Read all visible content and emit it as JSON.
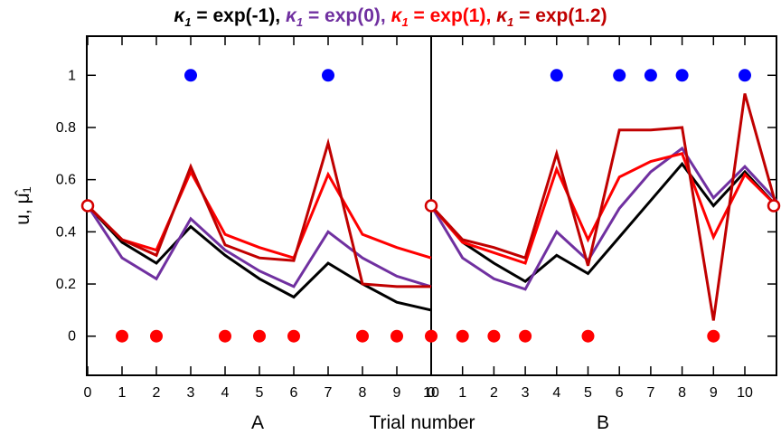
{
  "title_parts": [
    {
      "prefix": "",
      "sym": "κ",
      "sub": "1",
      "rest": " = exp(-1), ",
      "color": "#000000"
    },
    {
      "prefix": "",
      "sym": "κ",
      "sub": "1",
      "rest": " = exp(0), ",
      "color": "#7030a0"
    },
    {
      "prefix": "",
      "sym": "κ",
      "sub": "1",
      "rest": " = exp(1), ",
      "color": "#ff0000"
    },
    {
      "prefix": "",
      "sym": "κ",
      "sub": "1",
      "rest": " = exp(1.2)",
      "color": "#c00000"
    }
  ],
  "chart_data": {
    "type": "line",
    "ylabel": "u, μ̂₁",
    "xlabel": "Trial number",
    "ylim": [
      -0.15,
      1.15
    ],
    "yticks": [
      0,
      0.2,
      0.4,
      0.6,
      0.8,
      1
    ],
    "ytick_labels": [
      "0",
      "0.2",
      "0.4",
      "0.6",
      "0.8",
      "1"
    ],
    "panels": [
      {
        "label": "A",
        "xlim": [
          0,
          10
        ],
        "xticks": [
          0,
          1,
          2,
          3,
          4,
          5,
          6,
          7,
          8,
          9,
          10
        ],
        "xtick_labels": [
          "0",
          "1",
          "2",
          "3",
          "4",
          "5",
          "6",
          "7",
          "8",
          "9",
          "10"
        ],
        "inputs": {
          "x": [
            1,
            2,
            3,
            4,
            5,
            6,
            7,
            8,
            9,
            10
          ],
          "u": [
            0,
            0,
            1,
            0,
            0,
            0,
            1,
            0,
            0,
            0
          ]
        },
        "series": [
          {
            "name": "κ1 = exp(-1)",
            "color": "#000000",
            "x": [
              0,
              1,
              2,
              3,
              4,
              5,
              6,
              7,
              8,
              9,
              10
            ],
            "values": [
              0.5,
              0.36,
              0.28,
              0.42,
              0.31,
              0.22,
              0.15,
              0.28,
              0.2,
              0.13,
              0.1
            ]
          },
          {
            "name": "κ1 = exp(0)",
            "color": "#7030a0",
            "x": [
              0,
              1,
              2,
              3,
              4,
              5,
              6,
              7,
              8,
              9,
              10
            ],
            "values": [
              0.5,
              0.3,
              0.22,
              0.45,
              0.33,
              0.25,
              0.19,
              0.4,
              0.3,
              0.23,
              0.19
            ]
          },
          {
            "name": "κ1 = exp(1)",
            "color": "#ff0000",
            "x": [
              0,
              1,
              2,
              3,
              4,
              5,
              6,
              7,
              8,
              9,
              10
            ],
            "values": [
              0.5,
              0.37,
              0.33,
              0.63,
              0.39,
              0.34,
              0.3,
              0.62,
              0.39,
              0.34,
              0.3
            ]
          },
          {
            "name": "κ1 = exp(1.2)",
            "color": "#c00000",
            "x": [
              0,
              1,
              2,
              3,
              4,
              5,
              6,
              7,
              8,
              9,
              10
            ],
            "values": [
              0.5,
              0.37,
              0.31,
              0.65,
              0.35,
              0.3,
              0.29,
              0.74,
              0.2,
              0.19,
              0.19
            ]
          }
        ]
      },
      {
        "label": "B",
        "xlim": [
          0,
          11
        ],
        "xticks": [
          0,
          1,
          2,
          3,
          4,
          5,
          6,
          7,
          8,
          9,
          10
        ],
        "xtick_labels": [
          "0",
          "1",
          "2",
          "3",
          "4",
          "5",
          "6",
          "7",
          "8",
          "9",
          "10"
        ],
        "inputs": {
          "x": [
            1,
            2,
            3,
            4,
            5,
            6,
            7,
            8,
            9,
            10
          ],
          "u": [
            0,
            0,
            0,
            1,
            0,
            1,
            1,
            1,
            0,
            1
          ]
        },
        "series": [
          {
            "name": "κ1 = exp(-1)",
            "color": "#000000",
            "x": [
              0,
              1,
              2,
              3,
              4,
              5,
              6,
              7,
              8,
              9,
              10,
              11
            ],
            "values": [
              0.5,
              0.36,
              0.28,
              0.21,
              0.31,
              0.24,
              0.38,
              0.52,
              0.66,
              0.5,
              0.63,
              0.5
            ]
          },
          {
            "name": "κ1 = exp(0)",
            "color": "#7030a0",
            "x": [
              0,
              1,
              2,
              3,
              4,
              5,
              6,
              7,
              8,
              9,
              10,
              11
            ],
            "values": [
              0.5,
              0.3,
              0.22,
              0.18,
              0.4,
              0.29,
              0.49,
              0.63,
              0.72,
              0.53,
              0.65,
              0.52
            ]
          },
          {
            "name": "κ1 = exp(1)",
            "color": "#ff0000",
            "x": [
              0,
              1,
              2,
              3,
              4,
              5,
              6,
              7,
              8,
              9,
              10,
              11
            ],
            "values": [
              0.5,
              0.36,
              0.32,
              0.28,
              0.64,
              0.37,
              0.61,
              0.67,
              0.7,
              0.38,
              0.62,
              0.5
            ]
          },
          {
            "name": "κ1 = exp(1.2)",
            "color": "#c00000",
            "x": [
              0,
              1,
              2,
              3,
              4,
              5,
              6,
              7,
              8,
              9,
              10,
              11
            ],
            "values": [
              0.5,
              0.37,
              0.34,
              0.3,
              0.7,
              0.27,
              0.79,
              0.79,
              0.8,
              0.06,
              0.93,
              0.5
            ]
          }
        ]
      }
    ],
    "input_colors": {
      "one": "#0000ff",
      "zero": "#ff0000"
    },
    "marker_color": "#d40000"
  }
}
